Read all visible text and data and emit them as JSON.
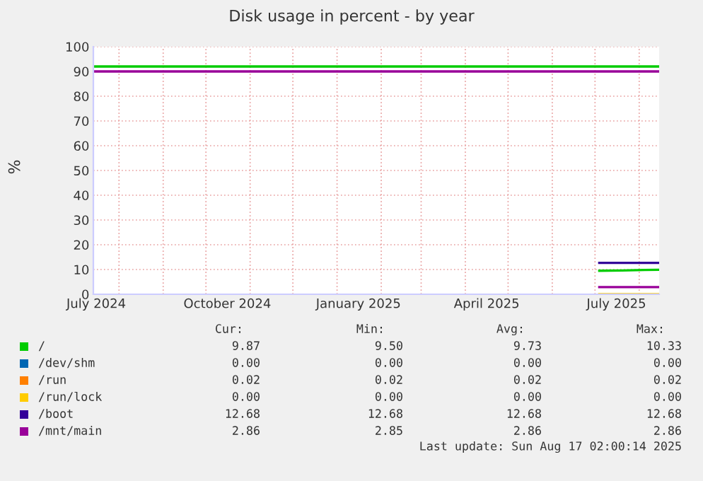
{
  "chart_data": {
    "type": "line",
    "title": "Disk usage in percent - by year",
    "ylabel": "%",
    "xlim": [
      "2024-07-14",
      "2025-08-15"
    ],
    "ylim": [
      0,
      100
    ],
    "yticks": [
      0,
      10,
      20,
      30,
      40,
      50,
      60,
      70,
      80,
      90,
      100
    ],
    "xticks": [
      {
        "value": "2024-07-16",
        "label": "July 2024"
      },
      {
        "value": "2024-10-16",
        "label": "October 2024"
      },
      {
        "value": "2025-01-16",
        "label": "January 2025"
      },
      {
        "value": "2025-04-16",
        "label": "April 2025"
      },
      {
        "value": "2025-07-16",
        "label": "July 2025"
      },
      {
        "value": "2024-08-01",
        "label": null
      },
      {
        "value": "2024-09-01",
        "label": null
      },
      {
        "value": "2024-10-01",
        "label": null
      },
      {
        "value": "2024-11-01",
        "label": null
      },
      {
        "value": "2024-12-01",
        "label": null
      },
      {
        "value": "2025-01-01",
        "label": null
      },
      {
        "value": "2025-02-01",
        "label": null
      },
      {
        "value": "2025-03-01",
        "label": null
      },
      {
        "value": "2025-04-01",
        "label": null
      },
      {
        "value": "2025-05-01",
        "label": null
      },
      {
        "value": "2025-06-01",
        "label": null
      },
      {
        "value": "2025-07-01",
        "label": null
      },
      {
        "value": "2025-08-01",
        "label": null
      }
    ],
    "grid": true,
    "legend": "bottom",
    "line_style": "solid",
    "series": [
      {
        "name": "/",
        "color": "#00cc00",
        "x": [
          "2025-07-04",
          "2025-07-20",
          "2025-08-05",
          "2025-08-15"
        ],
        "values": [
          9.5,
          9.6,
          9.8,
          9.9
        ]
      },
      {
        "name": "/dev/shm",
        "color": "#0066b3",
        "values": [
          null,
          null
        ]
      },
      {
        "name": "/run",
        "color": "#ff8000",
        "values": [
          null,
          null
        ]
      },
      {
        "name": "/run/lock",
        "color": "#ffcc00",
        "x": [
          "2025-07-04",
          "2025-08-15"
        ],
        "values": [
          0,
          0
        ]
      },
      {
        "name": "/boot",
        "color": "#330099",
        "x": [
          "2025-07-04",
          "2025-08-15"
        ],
        "values": [
          12.7,
          12.7
        ]
      },
      {
        "name": "/mnt/main",
        "color": "#990099",
        "x": [
          "2025-07-04",
          "2025-08-15"
        ],
        "values": [
          2.9,
          2.9
        ]
      }
    ],
    "ref_lines": [
      {
        "axis": "y",
        "value": 92,
        "color": "#00cc00"
      },
      {
        "axis": "y",
        "value": 90,
        "color": "#990099"
      }
    ],
    "annotations": [
      "Cur:",
      "Min:",
      "Avg:",
      "Max:",
      "9.87",
      "9.50",
      "9.73",
      "10.33",
      "0.00",
      "0.00",
      "0.00",
      "0.00",
      "0.02",
      "0.02",
      "0.02",
      "0.02",
      "0.00",
      "0.00",
      "0.00",
      "0.00",
      "12.68",
      "12.68",
      "12.68",
      "12.68",
      "2.86",
      "2.85",
      "2.86",
      "2.86",
      "Last update: Sun Aug 17 02:00:14 2025"
    ]
  }
}
